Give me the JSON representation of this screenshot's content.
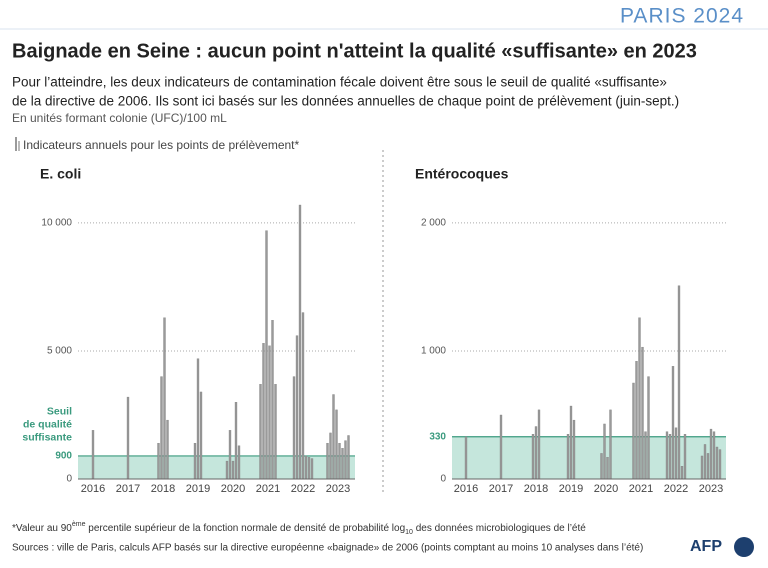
{
  "logo": "PARIS 2024",
  "title": "Baignade en Seine : aucun point n'atteint la qualité «suffisante» en 2023",
  "subtitle": [
    "Pour l’atteindre, les deux indicateurs de contamination fécale doivent être sous le seuil de qualité «suffisante»",
    "de la directive de 2006. Ils sont ici basés sur les données annuelles de chaque point de prélèvement (juin-sept.)"
  ],
  "units": "En unités formant colonie (UFC)/100 mL",
  "legend_note": "Indicateurs annuels pour les points de prélèvement*",
  "chart_data": [
    {
      "type": "bar",
      "title": "E. coli",
      "color": "#9a9a9a",
      "categories": [
        "2016",
        "2017",
        "2018",
        "2019",
        "2020",
        "2021",
        "2022",
        "2023"
      ],
      "values": [
        [
          1900
        ],
        [
          3200
        ],
        [
          1400,
          4000,
          6300,
          2300
        ],
        [
          1400,
          4700,
          3400
        ],
        [
          700,
          1900,
          700,
          3000,
          1300
        ],
        [
          3700,
          5300,
          9700,
          5200,
          6200,
          3700
        ],
        [
          4000,
          5600,
          10700,
          6500,
          900,
          850,
          800
        ],
        [
          1400,
          1800,
          3300,
          2700,
          1400,
          1200,
          1500,
          1700
        ]
      ],
      "ylim": [
        0,
        10700
      ],
      "yticks": [
        0,
        {
          "value": 5000,
          "label": "5 000"
        },
        {
          "value": 10000,
          "label": "10 000"
        }
      ],
      "grid": true,
      "threshold": 900,
      "threshold_label": [
        "Seuil",
        "de qualité",
        "suffisante"
      ],
      "threshold_color": "#3a9a7e"
    },
    {
      "type": "bar",
      "title": "Entérocoques",
      "color": "#9a9a9a",
      "categories": [
        "2016",
        "2017",
        "2018",
        "2019",
        "2020",
        "2021",
        "2022",
        "2023"
      ],
      "values": [
        [
          330
        ],
        [
          500
        ],
        [
          350,
          410,
          540
        ],
        [
          350,
          570,
          460
        ],
        [
          200,
          430,
          170,
          540
        ],
        [
          750,
          920,
          1260,
          1030,
          370,
          800
        ],
        [
          370,
          350,
          880,
          400,
          1510,
          100,
          350
        ],
        [
          180,
          270,
          200,
          390,
          370,
          250,
          230
        ]
      ],
      "ylim": [
        0,
        2140
      ],
      "yticks": [
        0,
        {
          "value": 1000,
          "label": "1 000"
        },
        {
          "value": 2000,
          "label": "2 000"
        }
      ],
      "grid": true,
      "threshold": 330,
      "threshold_color": "#3a9a7e"
    }
  ],
  "footnote": [
    "*Valeur au 90",
    "ème",
    " percentile supérieur de la fonction normale de densité de probabilité log",
    "10",
    " des données microbiologiques de l’été"
  ],
  "sources": "Sources : ville de Paris, calculs AFP basés sur la directive européenne «baignade» de 2006 (points comptant au moins 10 analyses dans l’été)",
  "agency": "AFP"
}
